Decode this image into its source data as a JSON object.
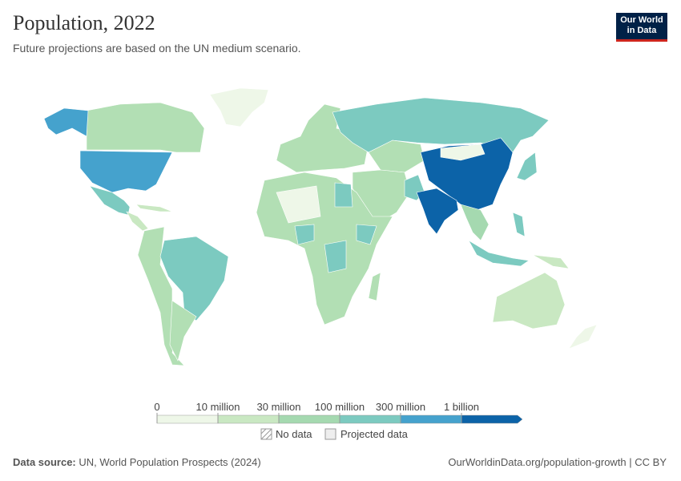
{
  "header": {
    "title": "Population, 2022",
    "subtitle": "Future projections are based on the UN medium scenario.",
    "logo": [
      "Our World",
      "in Data"
    ]
  },
  "legend": {
    "bins": [
      {
        "value": 0,
        "label": "0"
      },
      {
        "value": 10000000,
        "label": "10 million"
      },
      {
        "value": 30000000,
        "label": "30 million"
      },
      {
        "value": 100000000,
        "label": "100 million"
      },
      {
        "value": 300000000,
        "label": "300 million"
      },
      {
        "value": 1000000000,
        "label": "1 billion"
      }
    ],
    "colors": [
      "#eef7e8",
      "#c9e8c2",
      "#a5d9b0",
      "#7ccac0",
      "#45a2cd",
      "#0c63a8"
    ],
    "no_data": "No data",
    "projected": "Projected data"
  },
  "footer": {
    "source_label": "Data source:",
    "source": "UN, World Population Prospects (2024)",
    "link": "OurWorldinData.org/population-growth | CC BY"
  }
}
